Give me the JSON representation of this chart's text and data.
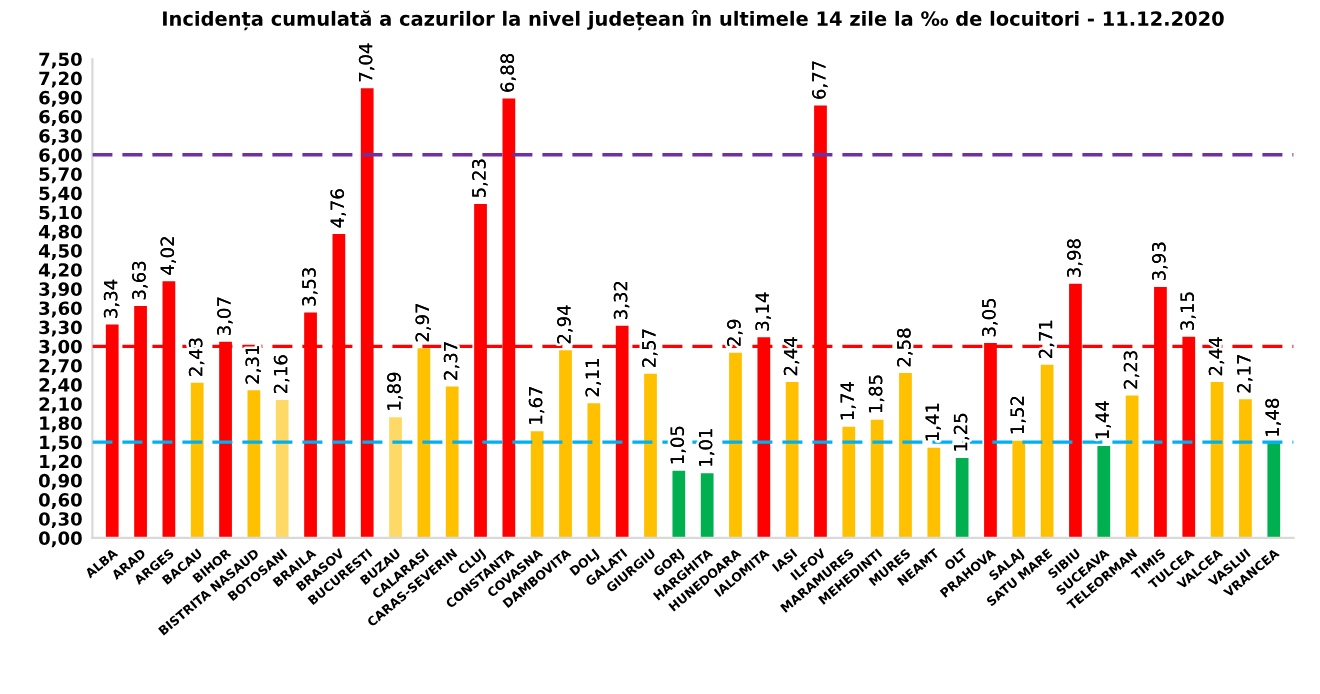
{
  "chart_data": {
    "type": "bar",
    "title": "Incidența cumulată a cazurilor la nivel județean în ultimele 14 zile la ‰ de locuitori - 11.12.2020",
    "categories": [
      "ALBA",
      "ARAD",
      "ARGES",
      "BACAU",
      "BIHOR",
      "BISTRITA NASAUD",
      "BOTOSANI",
      "BRAILA",
      "BRASOV",
      "BUCURESTI",
      "BUZAU",
      "CALARASI",
      "CARAS-SEVERIN",
      "CLUJ",
      "CONSTANTA",
      "COVASNA",
      "DAMBOVITA",
      "DOLJ",
      "GALATI",
      "GIURGIU",
      "GORJ",
      "HARGHITA",
      "HUNEDOARA",
      "IALOMITA",
      "IASI",
      "ILFOV",
      "MARAMURES",
      "MEHEDINTI",
      "MURES",
      "NEAMT",
      "OLT",
      "PRAHOVA",
      "SALAJ",
      "SATU MARE",
      "SIBIU",
      "SUCEAVA",
      "TELEORMAN",
      "TIMIS",
      "TULCEA",
      "VALCEA",
      "VASLUI",
      "VRANCEA"
    ],
    "values": [
      3.34,
      3.63,
      4.02,
      2.43,
      3.07,
      2.31,
      2.16,
      3.53,
      4.76,
      7.04,
      1.89,
      2.97,
      2.37,
      5.23,
      6.88,
      1.67,
      2.94,
      2.11,
      3.32,
      2.57,
      1.05,
      1.01,
      2.9,
      3.14,
      2.44,
      6.77,
      1.74,
      1.85,
      2.58,
      1.41,
      1.25,
      3.05,
      1.52,
      2.71,
      3.98,
      1.44,
      2.23,
      3.93,
      3.15,
      2.44,
      2.17,
      1.48
    ],
    "value_labels": [
      "3,34",
      "3,63",
      "4,02",
      "2,43",
      "3,07",
      "2,31",
      "2,16",
      "3,53",
      "4,76",
      "7,04",
      "1,89",
      "2,97",
      "2,37",
      "5,23",
      "6,88",
      "1,67",
      "2,94",
      "2,11",
      "3,32",
      "2,57",
      "1,05",
      "1,01",
      "2,9",
      "3,14",
      "2,44",
      "6,77",
      "1,74",
      "1,85",
      "2,58",
      "1,41",
      "1,25",
      "3,05",
      "1,52",
      "2,71",
      "3,98",
      "1,44",
      "2,23",
      "3,93",
      "3,15",
      "2,44",
      "2,17",
      "1,48"
    ],
    "colors": [
      "#ff0000",
      "#ff0000",
      "#ff0000",
      "#ffc000",
      "#ff0000",
      "#ffc000",
      "#ffd966",
      "#ff0000",
      "#ff0000",
      "#ff0000",
      "#ffd966",
      "#ffc000",
      "#ffc000",
      "#ff0000",
      "#ff0000",
      "#ffc000",
      "#ffc000",
      "#ffc000",
      "#ff0000",
      "#ffc000",
      "#00b050",
      "#00b050",
      "#ffc000",
      "#ff0000",
      "#ffc000",
      "#ff0000",
      "#ffc000",
      "#ffc000",
      "#ffc000",
      "#ffc000",
      "#00b050",
      "#ff0000",
      "#ffc000",
      "#ffc000",
      "#ff0000",
      "#00b050",
      "#ffc000",
      "#ff0000",
      "#ff0000",
      "#ffc000",
      "#ffc000",
      "#00b050"
    ],
    "ylim": [
      0,
      7.5
    ],
    "yticks": [
      {
        "value": 0,
        "label": "0,00"
      },
      {
        "value": 0.3,
        "label": "0,30"
      },
      {
        "value": 0.6,
        "label": "0,60"
      },
      {
        "value": 0.9,
        "label": "0,90"
      },
      {
        "value": 1.2,
        "label": "1,20"
      },
      {
        "value": 1.5,
        "label": "1,50"
      },
      {
        "value": 1.8,
        "label": "1,80"
      },
      {
        "value": 2.1,
        "label": "2,10"
      },
      {
        "value": 2.4,
        "label": "2,40"
      },
      {
        "value": 2.7,
        "label": "2,70"
      },
      {
        "value": 3.0,
        "label": "3,00"
      },
      {
        "value": 3.3,
        "label": "3,30"
      },
      {
        "value": 3.6,
        "label": "3,60"
      },
      {
        "value": 3.9,
        "label": "3,90"
      },
      {
        "value": 4.2,
        "label": "4,20"
      },
      {
        "value": 4.5,
        "label": "4,50"
      },
      {
        "value": 4.8,
        "label": "4,80"
      },
      {
        "value": 5.1,
        "label": "5,10"
      },
      {
        "value": 5.4,
        "label": "5,40"
      },
      {
        "value": 5.7,
        "label": "5,70"
      },
      {
        "value": 6.0,
        "label": "6,00"
      },
      {
        "value": 6.3,
        "label": "6,30"
      },
      {
        "value": 6.6,
        "label": "6,60"
      },
      {
        "value": 6.9,
        "label": "6,90"
      },
      {
        "value": 7.2,
        "label": "7,20"
      },
      {
        "value": 7.5,
        "label": "7,50"
      }
    ],
    "ref_lines": [
      {
        "axis": "y",
        "value": 6.0,
        "color": "#7030a0",
        "line_style": "dashed"
      },
      {
        "axis": "y",
        "value": 3.0,
        "color": "#ff0000",
        "line_style": "dashed"
      },
      {
        "axis": "y",
        "value": 1.5,
        "color": "#00b0f0",
        "line_style": "dashed"
      }
    ],
    "grid": false,
    "legend": false
  }
}
